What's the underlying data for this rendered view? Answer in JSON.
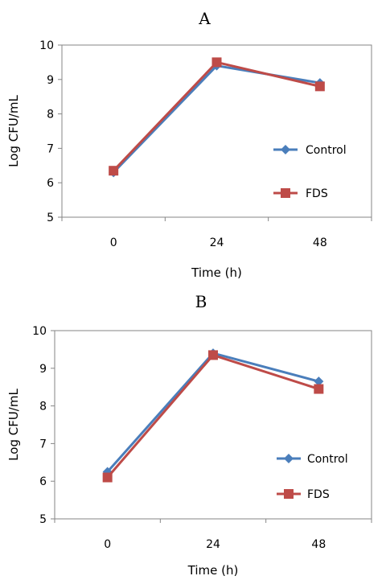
{
  "chart_data": [
    {
      "type": "line",
      "title": "A",
      "xlabel": "Time (h)",
      "ylabel": "Log CFU/mL",
      "categories": [
        "0",
        "24",
        "48"
      ],
      "ylim": [
        5,
        10
      ],
      "yticks": [
        "5",
        "6",
        "7",
        "8",
        "9",
        "10"
      ],
      "grid": false,
      "legend_position": "right",
      "series": [
        {
          "name": "Control",
          "color": "#4a7ebb",
          "marker": "diamond",
          "values": [
            6.3,
            9.4,
            8.9
          ]
        },
        {
          "name": "FDS",
          "color": "#be4b48",
          "marker": "square",
          "values": [
            6.35,
            9.5,
            8.8
          ]
        }
      ]
    },
    {
      "type": "line",
      "title": "B",
      "xlabel": "Time (h)",
      "ylabel": "Log CFU/mL",
      "categories": [
        "0",
        "24",
        "48"
      ],
      "ylim": [
        5,
        10
      ],
      "yticks": [
        "5",
        "6",
        "7",
        "8",
        "9",
        "10"
      ],
      "grid": false,
      "legend_position": "right",
      "series": [
        {
          "name": "Control",
          "color": "#4a7ebb",
          "marker": "diamond",
          "values": [
            6.25,
            9.4,
            8.65
          ]
        },
        {
          "name": "FDS",
          "color": "#be4b48",
          "marker": "square",
          "values": [
            6.1,
            9.35,
            8.45
          ]
        }
      ]
    }
  ]
}
